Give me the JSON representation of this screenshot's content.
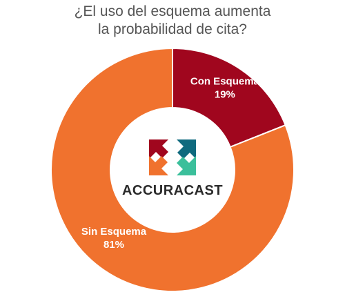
{
  "chart_data": {
    "type": "pie",
    "donut": true,
    "title_lines": [
      "¿El uso del esquema aumenta",
      "la probabilidad de cita?"
    ],
    "slices": [
      {
        "label": "Con Esquema",
        "value": 19,
        "value_label": "19%",
        "color": "#a0061e"
      },
      {
        "label": "Sin Esquema",
        "value": 81,
        "value_label": "81%",
        "color": "#f0722e"
      }
    ],
    "start": "top",
    "direction": "clockwise"
  },
  "logo": {
    "text": "ACCURACAST",
    "colors": [
      "#a0061e",
      "#0f6a7e",
      "#3bbf9b",
      "#f0722e"
    ]
  }
}
